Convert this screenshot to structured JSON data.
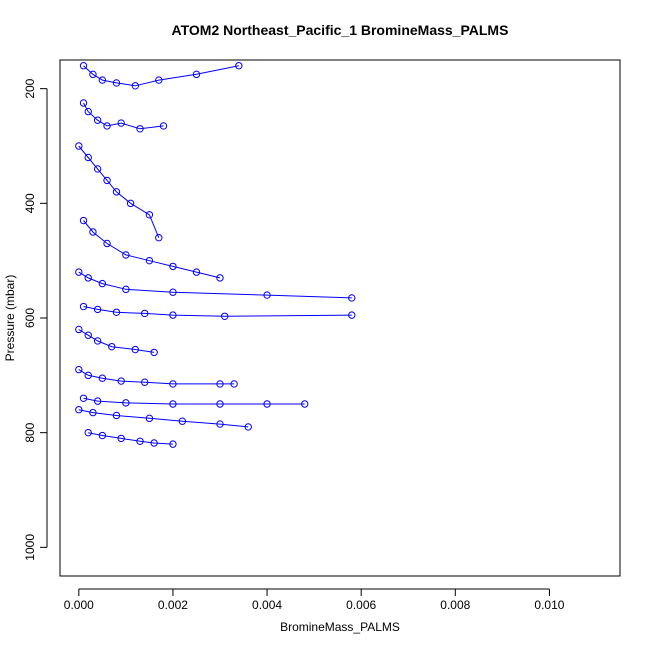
{
  "chart_data": {
    "type": "line",
    "title": "ATOM2 Northeast_Pacific_1 BromineMass_PALMS",
    "xlabel": "BromineMass_PALMS",
    "ylabel": "Pressure (mbar)",
    "xlim": [
      -0.0004,
      0.0115
    ],
    "ylim": [
      1050,
      150
    ],
    "y_inverted": true,
    "x_ticks": [
      "0.000",
      "0.002",
      "0.004",
      "0.006",
      "0.008",
      "0.010"
    ],
    "x_tick_values": [
      0,
      0.002,
      0.004,
      0.006,
      0.008,
      0.01
    ],
    "y_ticks": [
      "200",
      "400",
      "600",
      "800",
      "1000"
    ],
    "y_tick_values": [
      200,
      400,
      600,
      800,
      1000
    ],
    "grid": false,
    "legend": "none",
    "colors": {
      "series": "#0000ff",
      "frame": "#000000"
    },
    "marker": "open-circle",
    "series": [
      {
        "x": [
          0.0001,
          0.0003,
          0.0005,
          0.0008,
          0.0012,
          0.0017,
          0.0025,
          0.0034
        ],
        "y": [
          160,
          175,
          185,
          190,
          195,
          185,
          175,
          160
        ]
      },
      {
        "x": [
          0.0001,
          0.0002,
          0.0004,
          0.0006,
          0.0009,
          0.0013,
          0.0018
        ],
        "y": [
          225,
          240,
          255,
          265,
          260,
          270,
          265
        ]
      },
      {
        "x": [
          0.0,
          0.0002,
          0.0004,
          0.0006,
          0.0008,
          0.0011,
          0.0015,
          0.0017
        ],
        "y": [
          300,
          320,
          340,
          360,
          380,
          400,
          420,
          460
        ]
      },
      {
        "x": [
          0.0001,
          0.0003,
          0.0006,
          0.001,
          0.0015,
          0.002,
          0.0025,
          0.003
        ],
        "y": [
          430,
          450,
          470,
          490,
          500,
          510,
          520,
          530
        ]
      },
      {
        "x": [
          0.0,
          0.0002,
          0.0005,
          0.001,
          0.002,
          0.004,
          0.0058
        ],
        "y": [
          520,
          530,
          540,
          550,
          555,
          560,
          565
        ]
      },
      {
        "x": [
          0.0001,
          0.0004,
          0.0008,
          0.0014,
          0.002,
          0.0031,
          0.0058
        ],
        "y": [
          580,
          585,
          590,
          592,
          595,
          597,
          595
        ]
      },
      {
        "x": [
          0.0,
          0.0002,
          0.0004,
          0.0007,
          0.0012,
          0.0016
        ],
        "y": [
          620,
          630,
          640,
          650,
          655,
          660
        ]
      },
      {
        "x": [
          0.0,
          0.0002,
          0.0005,
          0.0009,
          0.0014,
          0.002,
          0.003,
          0.0033
        ],
        "y": [
          690,
          700,
          705,
          710,
          712,
          715,
          715,
          715
        ]
      },
      {
        "x": [
          0.0001,
          0.0004,
          0.001,
          0.002,
          0.003,
          0.004,
          0.0048
        ],
        "y": [
          740,
          745,
          748,
          750,
          750,
          750,
          750
        ]
      },
      {
        "x": [
          0.0,
          0.0003,
          0.0008,
          0.0015,
          0.0022,
          0.003,
          0.0036
        ],
        "y": [
          760,
          765,
          770,
          775,
          780,
          785,
          790
        ]
      },
      {
        "x": [
          0.0002,
          0.0005,
          0.0009,
          0.0013,
          0.0016,
          0.002
        ],
        "y": [
          800,
          805,
          810,
          815,
          818,
          820
        ]
      }
    ]
  }
}
